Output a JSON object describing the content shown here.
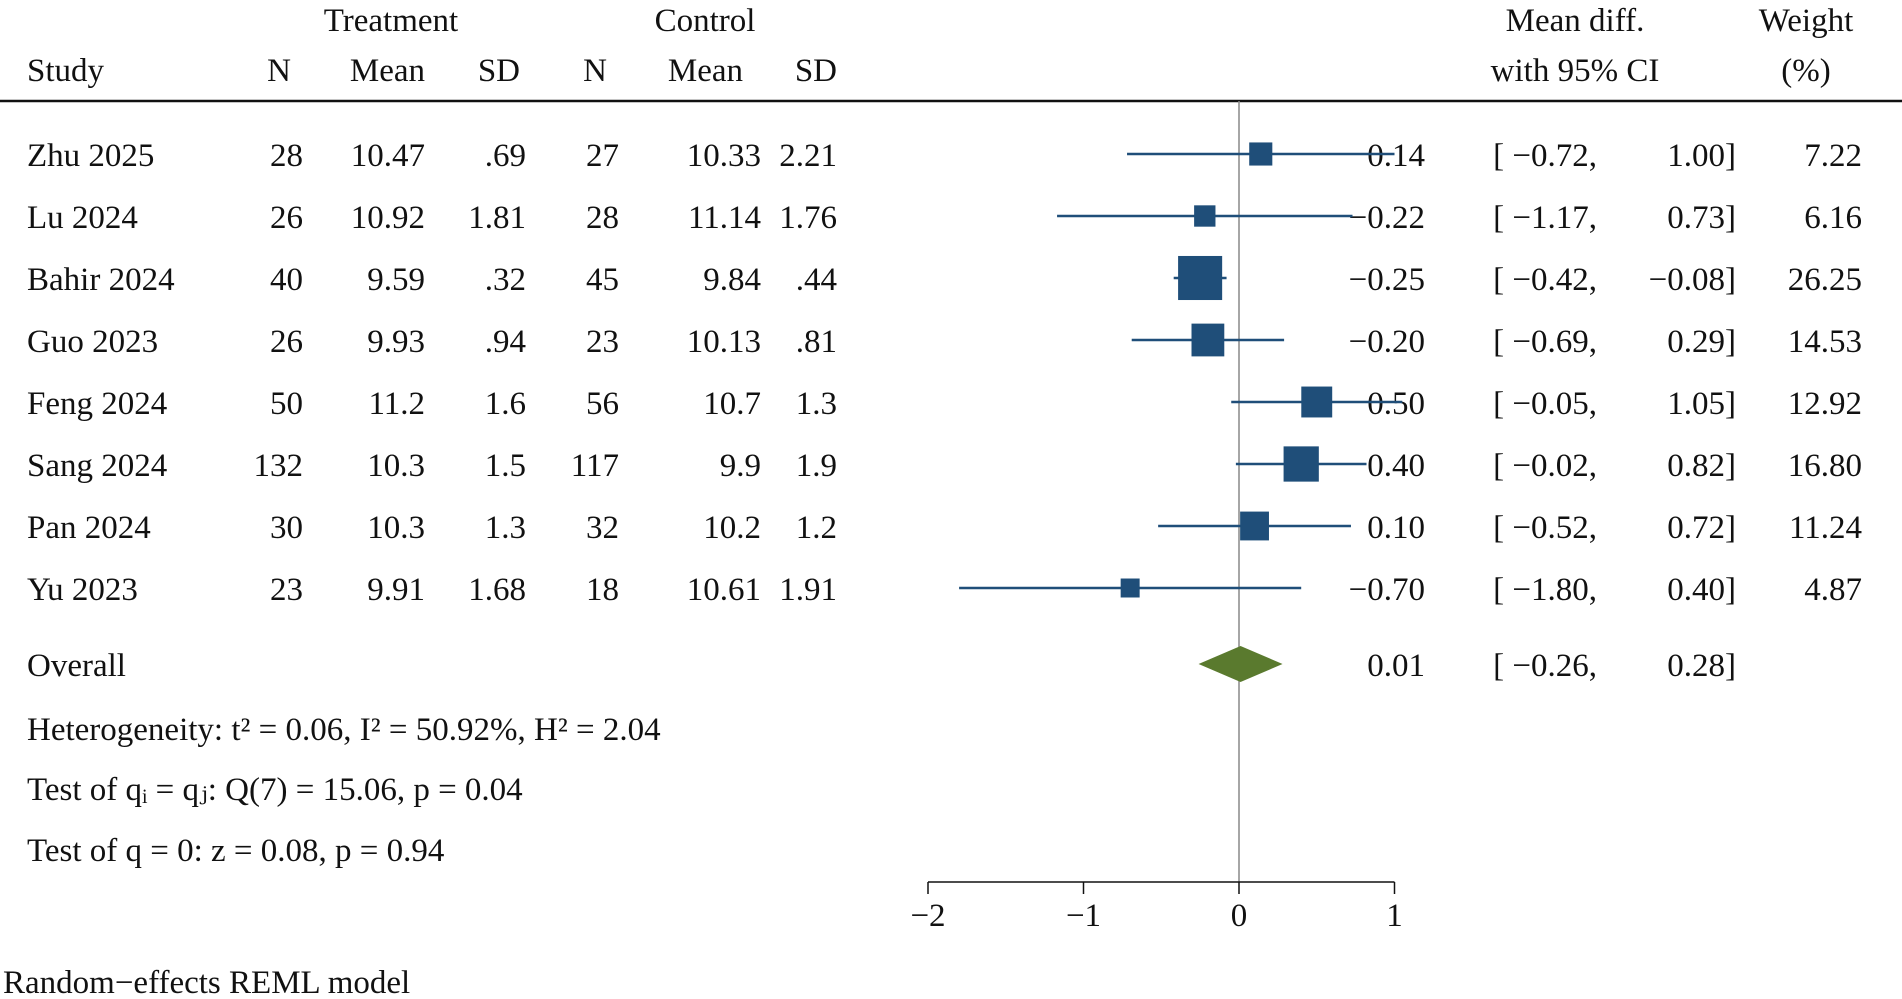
{
  "chart_data": {
    "type": "forest",
    "headers": {
      "study": "Study",
      "treatment_group": "Treatment",
      "control_group": "Control",
      "n": "N",
      "mean": "Mean",
      "sd": "SD",
      "effect_line1": "Mean diff.",
      "effect_line2": "with 95% CI",
      "weight_line1": "Weight",
      "weight_line2": "(%)"
    },
    "studies": [
      {
        "study": "Zhu 2025",
        "t_n": "28",
        "t_mean": "10.47",
        "t_sd": ".69",
        "c_n": "27",
        "c_mean": "10.33",
        "c_sd": "2.21",
        "md": 0.14,
        "lo": -0.72,
        "hi": 1.0,
        "weight": 7.22
      },
      {
        "study": "Lu 2024",
        "t_n": "26",
        "t_mean": "10.92",
        "t_sd": "1.81",
        "c_n": "28",
        "c_mean": "11.14",
        "c_sd": "1.76",
        "md": -0.22,
        "lo": -1.17,
        "hi": 0.73,
        "weight": 6.16
      },
      {
        "study": "Bahir 2024",
        "t_n": "40",
        "t_mean": "9.59",
        "t_sd": ".32",
        "c_n": "45",
        "c_mean": "9.84",
        "c_sd": ".44",
        "md": -0.25,
        "lo": -0.42,
        "hi": -0.08,
        "weight": 26.25
      },
      {
        "study": "Guo 2023",
        "t_n": "26",
        "t_mean": "9.93",
        "t_sd": ".94",
        "c_n": "23",
        "c_mean": "10.13",
        "c_sd": ".81",
        "md": -0.2,
        "lo": -0.69,
        "hi": 0.29,
        "weight": 14.53
      },
      {
        "study": "Feng 2024",
        "t_n": "50",
        "t_mean": "11.2",
        "t_sd": "1.6",
        "c_n": "56",
        "c_mean": "10.7",
        "c_sd": "1.3",
        "md": 0.5,
        "lo": -0.05,
        "hi": 1.05,
        "weight": 12.92
      },
      {
        "study": "Sang 2024",
        "t_n": "132",
        "t_mean": "10.3",
        "t_sd": "1.5",
        "c_n": "117",
        "c_mean": "9.9",
        "c_sd": "1.9",
        "md": 0.4,
        "lo": -0.02,
        "hi": 0.82,
        "weight": 16.8
      },
      {
        "study": "Pan 2024",
        "t_n": "30",
        "t_mean": "10.3",
        "t_sd": "1.3",
        "c_n": "32",
        "c_mean": "10.2",
        "c_sd": "1.2",
        "md": 0.1,
        "lo": -0.52,
        "hi": 0.72,
        "weight": 11.24
      },
      {
        "study": "Yu 2023",
        "t_n": "23",
        "t_mean": "9.91",
        "t_sd": "1.68",
        "c_n": "18",
        "c_mean": "10.61",
        "c_sd": "1.91",
        "md": -0.7,
        "lo": -1.8,
        "hi": 0.4,
        "weight": 4.87
      }
    ],
    "overall": {
      "label": "Overall",
      "md": 0.01,
      "lo": -0.26,
      "hi": 0.28
    },
    "stats": [
      "Heterogeneity: t² = 0.06, I² = 50.92%, H² = 2.04",
      "Test of qᵢ = qⱼ: Q(7) = 15.06, p = 0.04",
      "Test of q = 0: z = 0.08, p = 0.94"
    ],
    "footnote": "Random−effects REML model",
    "xaxis": {
      "range": [
        -2,
        1
      ],
      "ticks": [
        -2,
        -1,
        0,
        1
      ],
      "tick_labels": [
        "−2",
        "−1",
        "0",
        "1"
      ],
      "reference_line": 0
    },
    "colors": {
      "marker": "#1f4e79",
      "diamond": "#5a7a2e",
      "refline": "#888888"
    }
  }
}
